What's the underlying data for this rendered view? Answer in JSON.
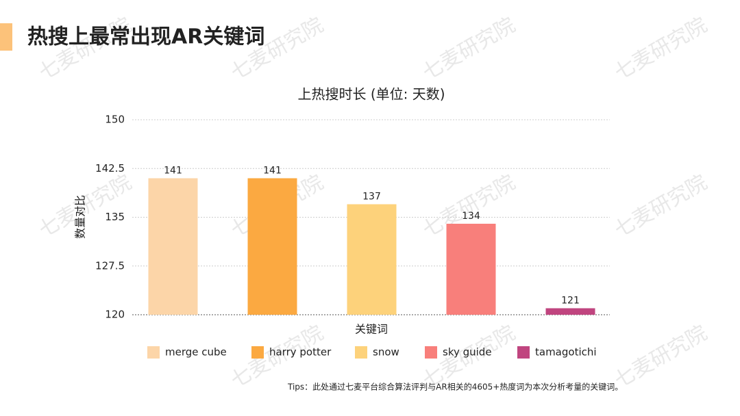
{
  "page_title": "热搜上最常出现AR关键词",
  "watermark": "七麦研究院",
  "tips": "Tips：此处通过七麦平台综合算法评判与AR相关的4605+热度词为本次分析考量的关键词。",
  "chart_data": {
    "type": "bar",
    "title": "上热搜时长 (单位: 天数)",
    "x_label": "关键词",
    "y_label": "数量对比",
    "categories": [
      "merge cube",
      "harry potter",
      "snow",
      "sky guide",
      "tamagotichi"
    ],
    "values": [
      141,
      141,
      137,
      134,
      121
    ],
    "colors": [
      "#fcd5a8",
      "#fba941",
      "#fdd27b",
      "#f87f7b",
      "#c0457f"
    ],
    "ylim": [
      120,
      150
    ],
    "yticks": [
      120,
      127.5,
      135,
      142.5,
      150
    ],
    "grid": true
  }
}
